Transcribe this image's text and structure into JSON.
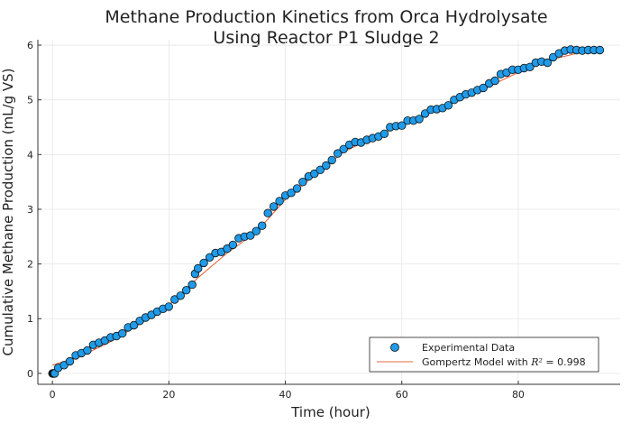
{
  "chart_data": {
    "type": "scatter",
    "title_line1": "Methane Production Kinetics from Orca Hydrolysate",
    "title_line2": "Using Reactor P1 Sludge 2",
    "xlabel": "Time (hour)",
    "ylabel": "Cumulative Methane Production (mL/g VS)",
    "xlim": [
      -2.5,
      97.5
    ],
    "ylim": [
      -0.2,
      6.1
    ],
    "xticks": [
      0,
      20,
      40,
      60,
      80
    ],
    "yticks": [
      0,
      1,
      2,
      3,
      4,
      5,
      6
    ],
    "grid": true,
    "legend_position": "bottom-right",
    "colors": {
      "experimental": "#1f9be9",
      "marker_edge": "#111111",
      "model": "#e5683f",
      "grid": "#e6e6e6",
      "axis": "#333333"
    },
    "series": [
      {
        "name": "Experimental Data",
        "kind": "scatter",
        "x": [
          0,
          0.1,
          0.2,
          0.3,
          0.4,
          1,
          2,
          3,
          4,
          5,
          6,
          7,
          8,
          9,
          10,
          11,
          12,
          13,
          14,
          15,
          16,
          17,
          18,
          19,
          20,
          21,
          22,
          23,
          24,
          24.5,
          25,
          26,
          27,
          28,
          29,
          30,
          31,
          32,
          33,
          34,
          35,
          36,
          37,
          38,
          39,
          40,
          41,
          42,
          43,
          44,
          45,
          46,
          47,
          48,
          49,
          50,
          51,
          52,
          53,
          54,
          55,
          56,
          57,
          58,
          59,
          60,
          61,
          62,
          63,
          64,
          65,
          66,
          67,
          68,
          69,
          70,
          71,
          72,
          73,
          74,
          75,
          76,
          77,
          78,
          79,
          80,
          81,
          82,
          83,
          84,
          85,
          86,
          87,
          88,
          89,
          90,
          91,
          92,
          93,
          94
        ],
        "y": [
          0,
          0,
          0,
          0,
          0,
          0.1,
          0.15,
          0.22,
          0.33,
          0.37,
          0.42,
          0.52,
          0.56,
          0.6,
          0.66,
          0.68,
          0.73,
          0.84,
          0.88,
          0.96,
          1.02,
          1.07,
          1.13,
          1.18,
          1.22,
          1.35,
          1.42,
          1.52,
          1.62,
          1.82,
          1.92,
          2.02,
          2.12,
          2.2,
          2.22,
          2.28,
          2.35,
          2.47,
          2.5,
          2.52,
          2.6,
          2.7,
          2.93,
          3.05,
          3.15,
          3.25,
          3.3,
          3.38,
          3.5,
          3.6,
          3.65,
          3.72,
          3.8,
          3.9,
          4.02,
          4.1,
          4.18,
          4.23,
          4.22,
          4.27,
          4.3,
          4.33,
          4.38,
          4.5,
          4.52,
          4.53,
          4.62,
          4.62,
          4.65,
          4.75,
          4.82,
          4.83,
          4.85,
          4.9,
          5.0,
          5.05,
          5.1,
          5.13,
          5.18,
          5.22,
          5.3,
          5.35,
          5.47,
          5.5,
          5.55,
          5.55,
          5.58,
          5.6,
          5.68,
          5.7,
          5.68,
          5.78,
          5.85,
          5.9,
          5.92,
          5.91,
          5.9,
          5.91,
          5.91,
          5.91
        ]
      },
      {
        "name": "Gompertz Model with R² = 0.998",
        "name_prefix": "Gompertz Model with ",
        "name_math": "R² = ",
        "name_value": "0.998",
        "kind": "line",
        "x": [
          0,
          5,
          10,
          15,
          20,
          25,
          30,
          35,
          40,
          45,
          50,
          55,
          60,
          65,
          70,
          75,
          80,
          85,
          90,
          94
        ],
        "y": [
          0.15,
          0.32,
          0.58,
          0.9,
          1.25,
          1.75,
          2.2,
          2.58,
          3.18,
          3.62,
          4.05,
          4.3,
          4.55,
          4.78,
          5.0,
          5.25,
          5.5,
          5.72,
          5.85,
          5.9
        ]
      }
    ]
  }
}
